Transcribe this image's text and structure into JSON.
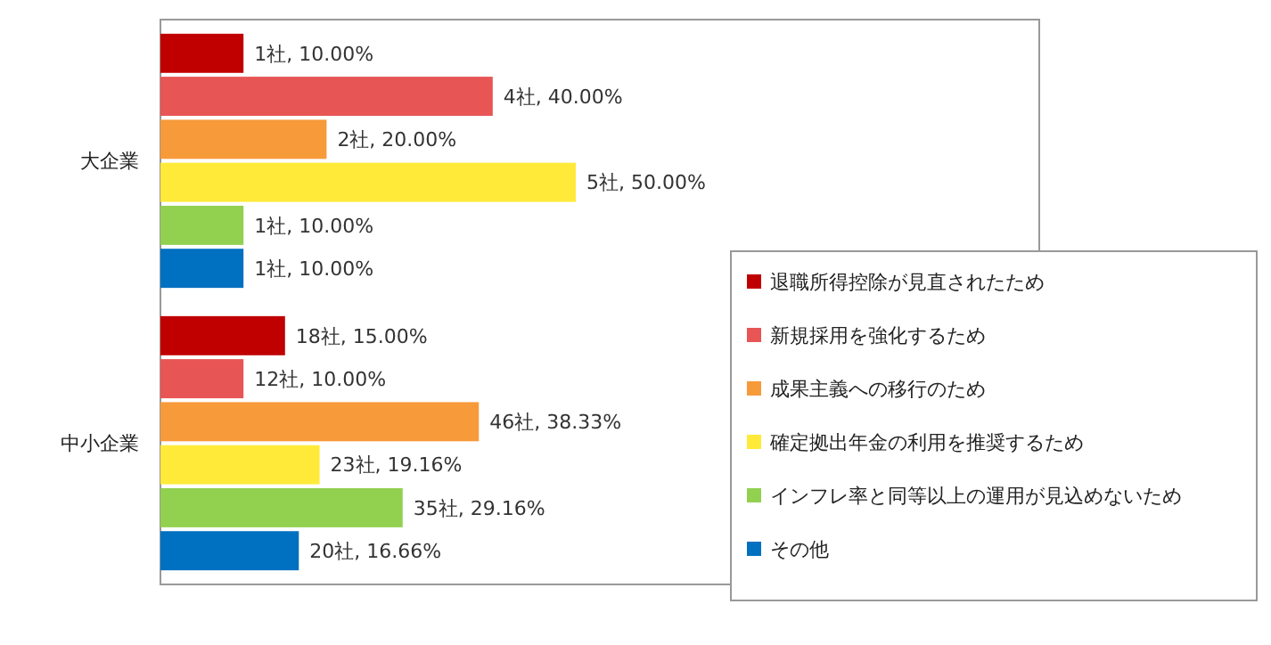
{
  "chart_data": {
    "type": "bar",
    "orientation": "horizontal",
    "categories": [
      "大企業",
      "中小企業"
    ],
    "legend": "bottom right",
    "series": [
      {
        "name": "退職所得控除が見直されたため",
        "color": "#c00000",
        "values": [
          10,
          15
        ],
        "value_labels": [
          "1社, 10.00%",
          "18社, 15.00%"
        ]
      },
      {
        "name": "新規採用を強化するため",
        "color": "#e85555",
        "values": [
          40,
          10
        ],
        "value_labels": [
          "4社, 40.00%",
          "12社, 10.00%"
        ]
      },
      {
        "name": "成果主義への移行のため",
        "color": "#f79a3a",
        "values": [
          20,
          38.33
        ],
        "value_labels": [
          "2社, 20.00%",
          "46社, 38.33%"
        ]
      },
      {
        "name": "確定拠出年金の利用を推奨するため",
        "color": "#ffea3a",
        "values": [
          50,
          19.16
        ],
        "value_labels": [
          "5社, 50.00%",
          "23社, 19.16%"
        ]
      },
      {
        "name": "インフレ率と同等以上の運用が見込めないため",
        "color": "#92d050",
        "values": [
          10,
          29.16
        ],
        "value_labels": [
          "1社, 10.00%",
          "35社, 29.16%"
        ]
      },
      {
        "name": "その他",
        "color": "#0070c0",
        "values": [
          10,
          16.66
        ],
        "value_labels": [
          "1社, 10.00%",
          "20社, 16.66%"
        ]
      }
    ]
  }
}
